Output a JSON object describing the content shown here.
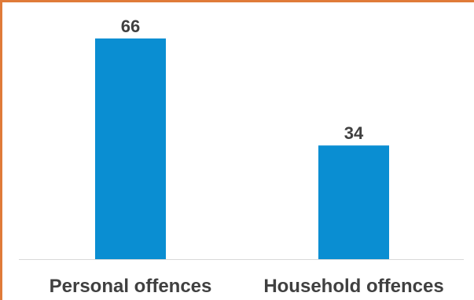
{
  "chart_data": {
    "type": "bar",
    "categories": [
      "Personal offences",
      "Household offences"
    ],
    "values": [
      66,
      34
    ],
    "title": "",
    "xlabel": "",
    "ylabel": "",
    "ylim": [
      0,
      66
    ],
    "grid": false,
    "legend": "none",
    "data_labels": [
      "66",
      "34"
    ]
  },
  "colors": {
    "bar": "#0A8ED2",
    "frame": "#E07B39",
    "axis": "#D9D9D9",
    "text": "#404040"
  }
}
